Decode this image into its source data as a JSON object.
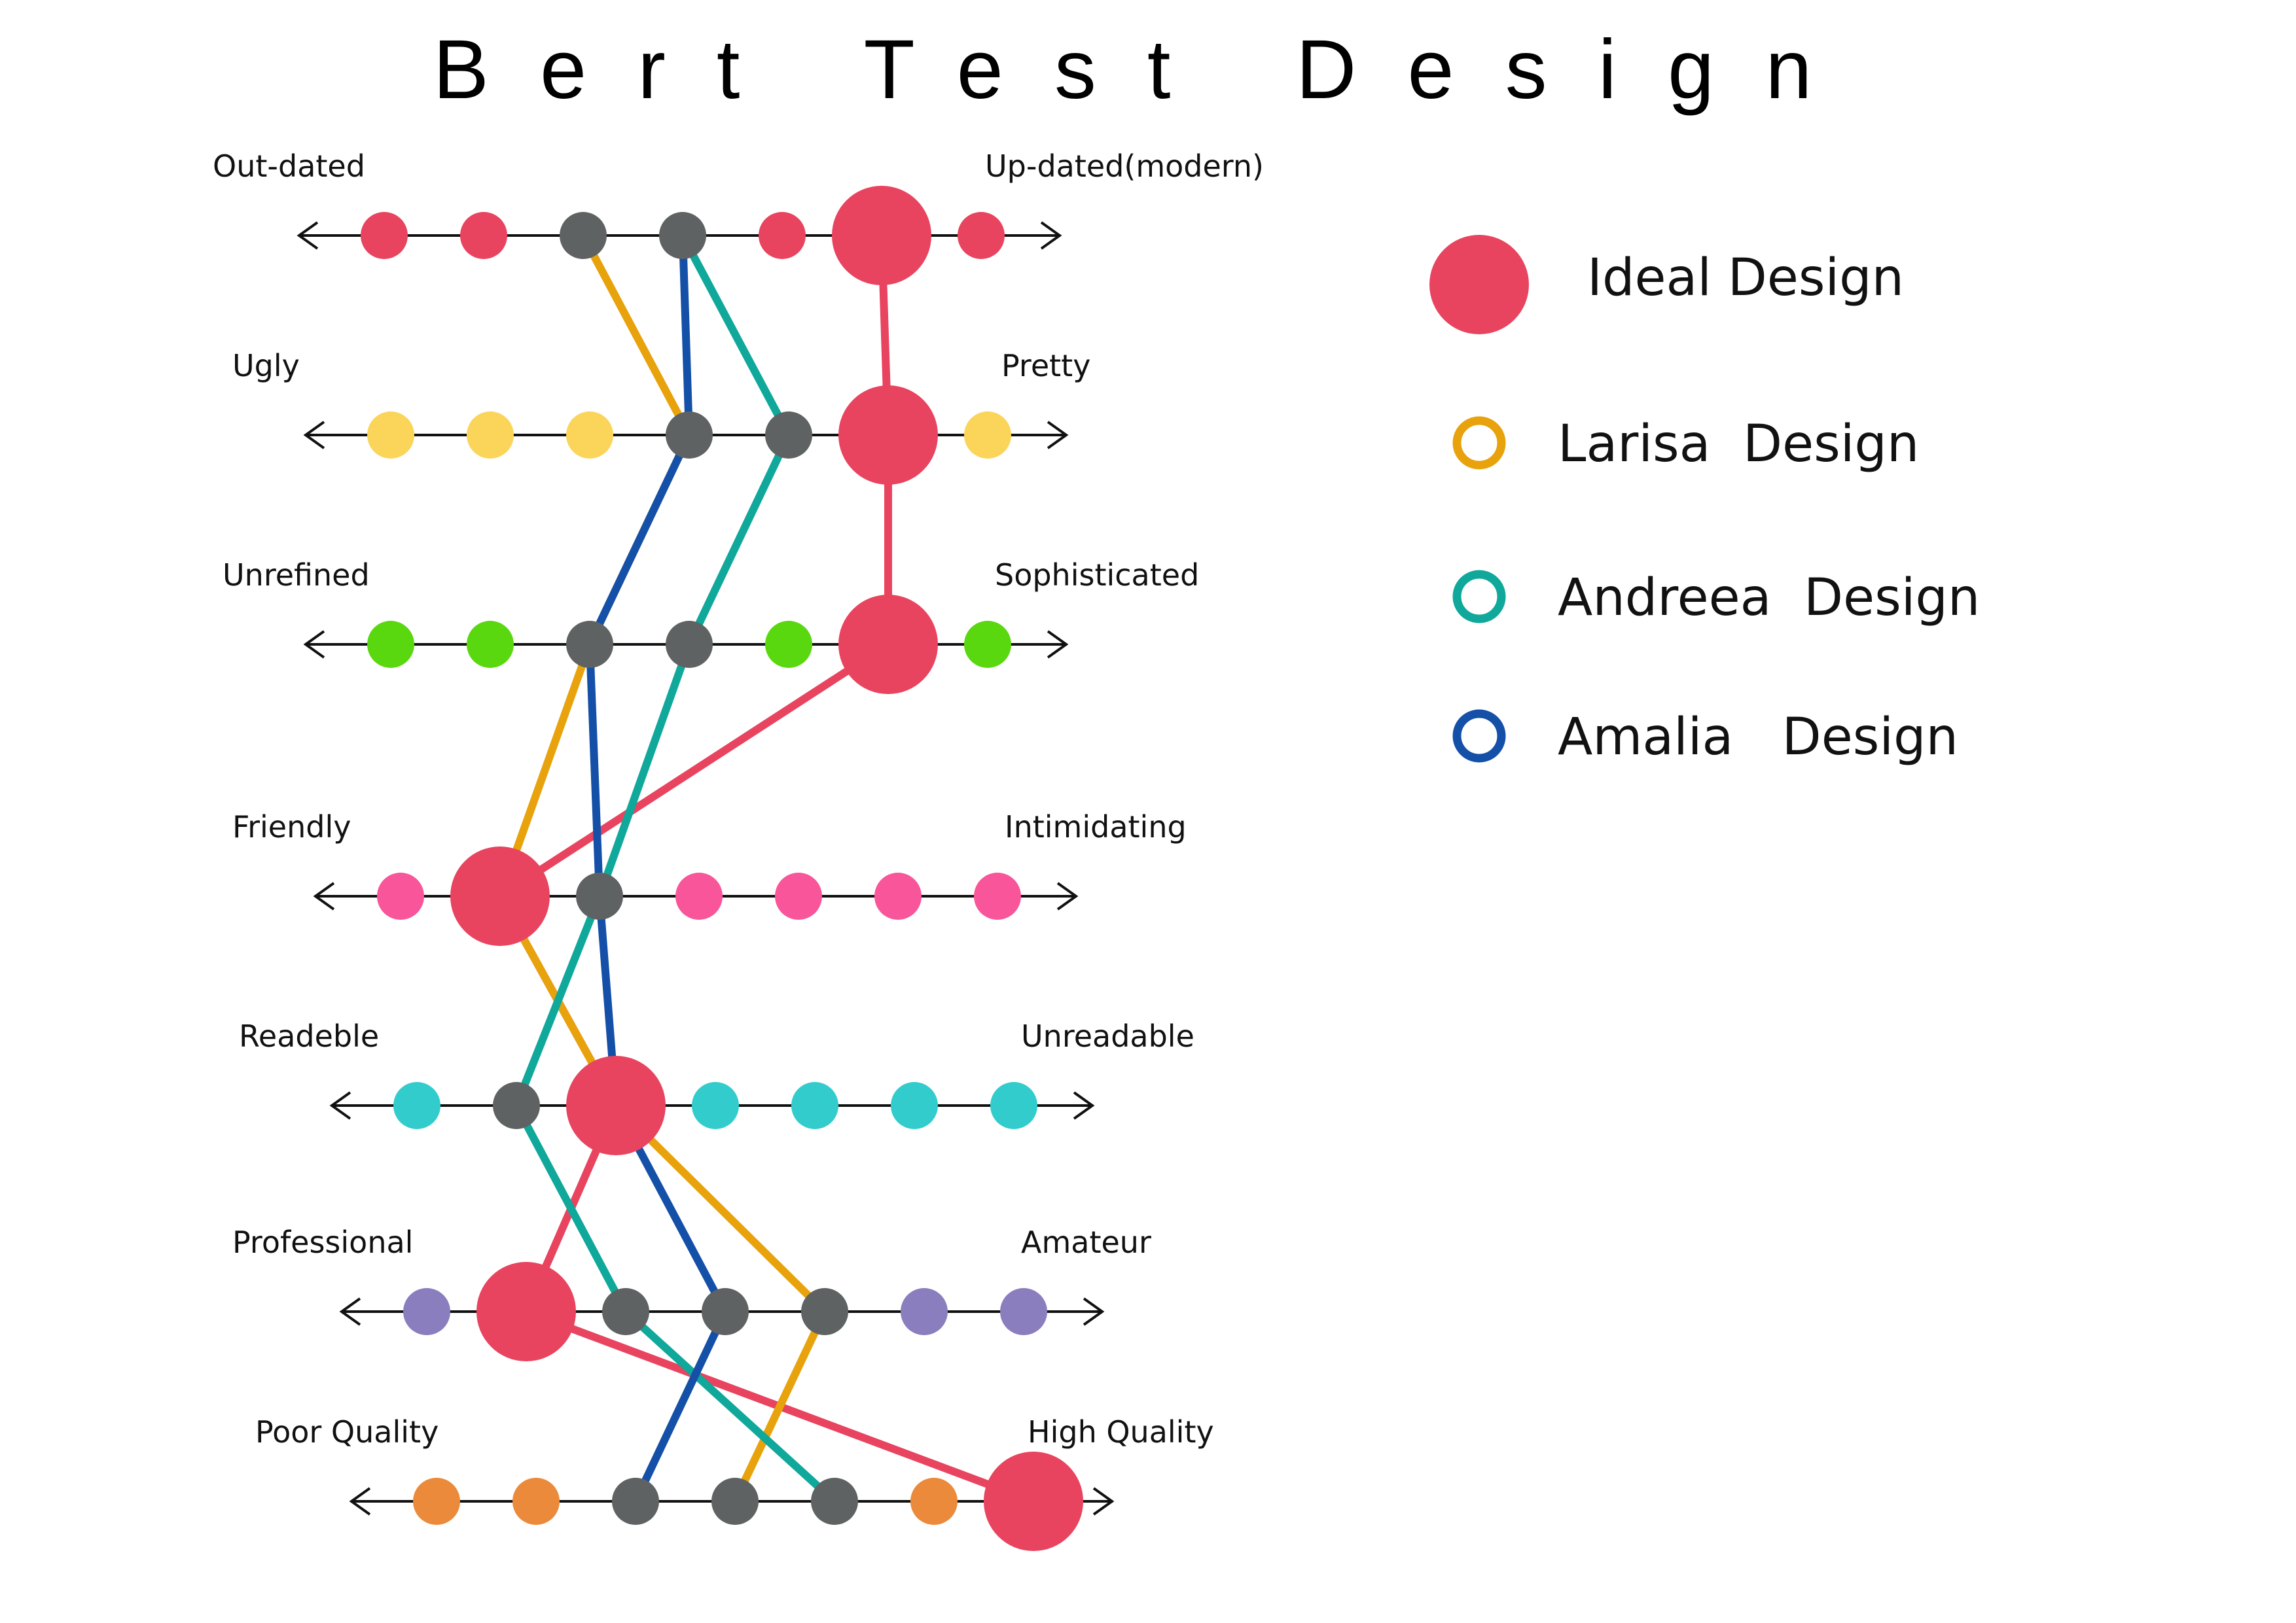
{
  "chart_data": {
    "type": "scatter",
    "title": "Bert Test Design",
    "scale_positions": [
      1,
      2,
      3,
      4,
      5,
      6,
      7
    ],
    "rows": [
      {
        "left": "Out-dated",
        "right": "Up-dated(modern)",
        "color": "#E8445F"
      },
      {
        "left": "Ugly",
        "right": "Pretty",
        "color": "#FBD45A"
      },
      {
        "left": "Unrefined",
        "right": "Sophisticated",
        "color": "#5AD80F"
      },
      {
        "left": "Friendly",
        "right": "Intimidating",
        "color": "#F8559A"
      },
      {
        "left": "Readeble",
        "right": "Unreadable",
        "color": "#33CCCC"
      },
      {
        "left": "Professional",
        "right": "Amateur",
        "color": "#8A7EBE"
      },
      {
        "left": "Poor Quality",
        "right": "High Quality",
        "color": "#EA8A3A"
      }
    ],
    "series": [
      {
        "name": "Ideal Design",
        "color": "#E8445F",
        "marker": "filled",
        "values": [
          6,
          6,
          6,
          2,
          3,
          2,
          7
        ]
      },
      {
        "name": "Larisa  Design",
        "color": "#E8A20C",
        "marker": "ring",
        "values": [
          3,
          4,
          3,
          2,
          3,
          5,
          4
        ]
      },
      {
        "name": "Andreea  Design",
        "color": "#0FA89B",
        "marker": "ring",
        "values": [
          4,
          5,
          4,
          3,
          2,
          3,
          5
        ]
      },
      {
        "name": "Amalia   Design",
        "color": "#1450A8",
        "marker": "ring",
        "values": [
          4,
          4,
          3,
          3,
          3,
          4,
          3
        ]
      }
    ],
    "neutral_marker_color": "#5F6262",
    "legend": "right"
  }
}
